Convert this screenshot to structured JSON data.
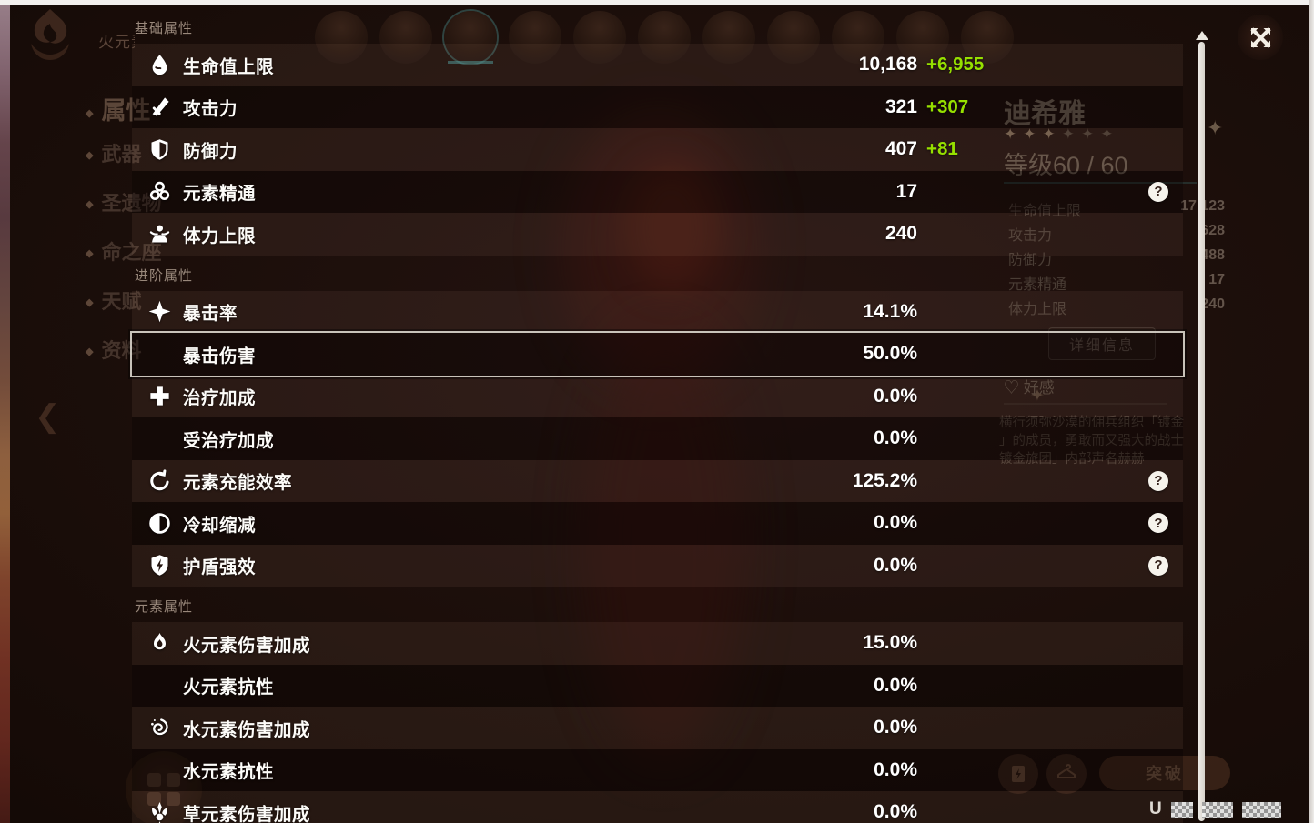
{
  "panel": {
    "help_glyph": "?",
    "sections": [
      {
        "title": "基础属性",
        "rows": [
          {
            "icon": "hp",
            "label": "生命值上限",
            "value": "10,168",
            "bonus": "+6,955"
          },
          {
            "icon": "atk",
            "label": "攻击力",
            "value": "321",
            "bonus": "+307"
          },
          {
            "icon": "def",
            "label": "防御力",
            "value": "407",
            "bonus": "+81"
          },
          {
            "icon": "em",
            "label": "元素精通",
            "value": "17",
            "help": true
          },
          {
            "icon": "stamina",
            "label": "体力上限",
            "value": "240"
          }
        ]
      },
      {
        "title": "进阶属性",
        "rows": [
          {
            "icon": "crit",
            "label": "暴击率",
            "value": "14.1%"
          },
          {
            "icon": null,
            "label": "暴击伤害",
            "value": "50.0%",
            "highlight": true
          },
          {
            "icon": "heal",
            "label": "治疗加成",
            "value": "0.0%"
          },
          {
            "icon": null,
            "label": "受治疗加成",
            "value": "0.0%"
          },
          {
            "icon": "er",
            "label": "元素充能效率",
            "value": "125.2%",
            "help": true
          },
          {
            "icon": "cd",
            "label": "冷却缩减",
            "value": "0.0%",
            "help": true
          },
          {
            "icon": "shield",
            "label": "护盾强效",
            "value": "0.0%",
            "help": true
          }
        ]
      },
      {
        "title": "元素属性",
        "rows": [
          {
            "icon": "pyro",
            "label": "火元素伤害加成",
            "value": "15.0%"
          },
          {
            "icon": null,
            "label": "火元素抗性",
            "value": "0.0%"
          },
          {
            "icon": "hydro",
            "label": "水元素伤害加成",
            "value": "0.0%"
          },
          {
            "icon": null,
            "label": "水元素抗性",
            "value": "0.0%"
          },
          {
            "icon": "dendro",
            "label": "草元素伤害加成",
            "value": "0.0%"
          }
        ]
      }
    ]
  },
  "background": {
    "element_label": "火元素",
    "sidebar_items": [
      "属性",
      "武器",
      "圣遗物",
      "命之座",
      "天赋",
      "资料"
    ],
    "avatar_count": 11,
    "current_avatar_index": 2,
    "character": {
      "name": "迪希雅",
      "stars_lit": 3,
      "stars_total": 6,
      "level": "等级60 / 60",
      "preview_stats": [
        {
          "label": "生命值上限",
          "value": "17,123"
        },
        {
          "label": "攻击力",
          "value": "628"
        },
        {
          "label": "防御力",
          "value": "488"
        },
        {
          "label": "元素精通",
          "value": "17"
        },
        {
          "label": "体力上限",
          "value": "240"
        }
      ],
      "detail_button": "详细信息",
      "friendship_label": "好感",
      "description_lines": [
        "横行须弥沙漠的佣兵组织「镀金",
        "」的成员，勇敢而又强大的战士",
        "镀金旅团」内部声名赫赫"
      ]
    },
    "ascend_button": "突破",
    "uid_prefix": "U"
  },
  "colors": {
    "bonus_green": "#96e000",
    "value_white": "#ffffff",
    "highlight_border": "#d8d3c9"
  }
}
